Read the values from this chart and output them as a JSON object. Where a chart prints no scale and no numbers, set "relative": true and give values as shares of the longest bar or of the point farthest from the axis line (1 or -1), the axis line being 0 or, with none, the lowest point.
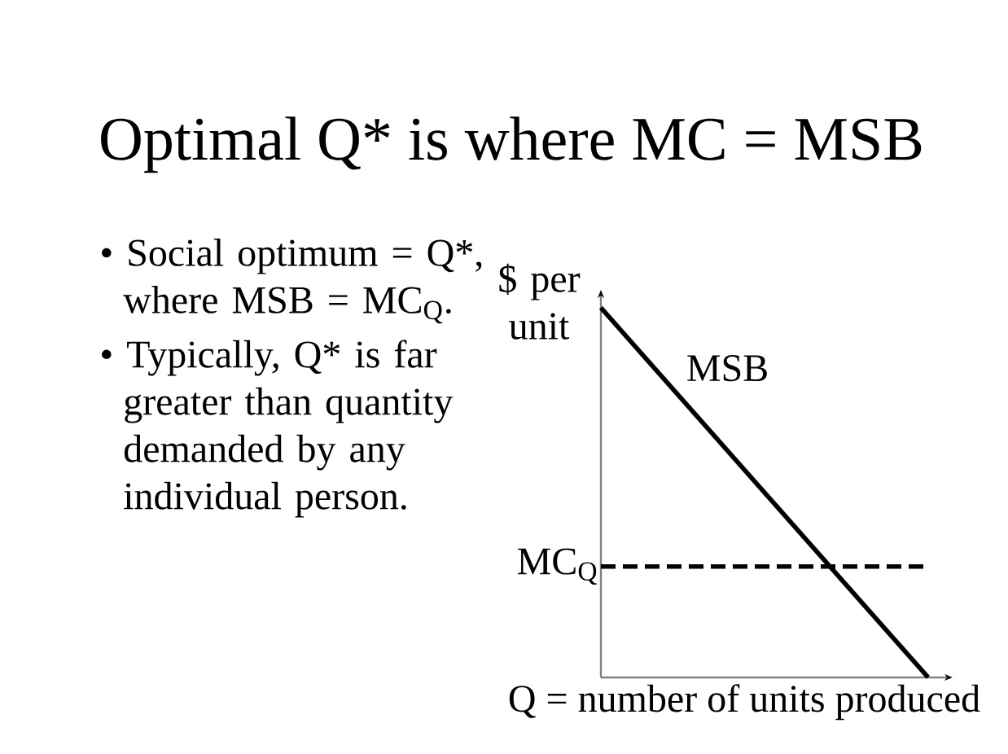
{
  "chart_data": {
    "type": "line",
    "title": "Optimal Q* is where MC = MSB",
    "xlabel": "Q = number of units produced",
    "ylabel": "$ per unit",
    "categories": [
      null,
      null
    ],
    "relative": true,
    "series": [
      {
        "name": "MSB",
        "color": "#000000",
        "values": [
          1,
          0
        ]
      },
      {
        "name": "MC$_{Q}$",
        "color": "#000000",
        "values": [
          0.3,
          0.3
        ],
        "line_style": "dashed"
      }
    ],
    "annotations": [
      "• Social optimum = Q*, where MSB = MC$_{Q}$.",
      "• Typically, Q* is far greater than quantity demanded by any individual person."
    ],
    "legend": false,
    "line_style": "solid"
  }
}
